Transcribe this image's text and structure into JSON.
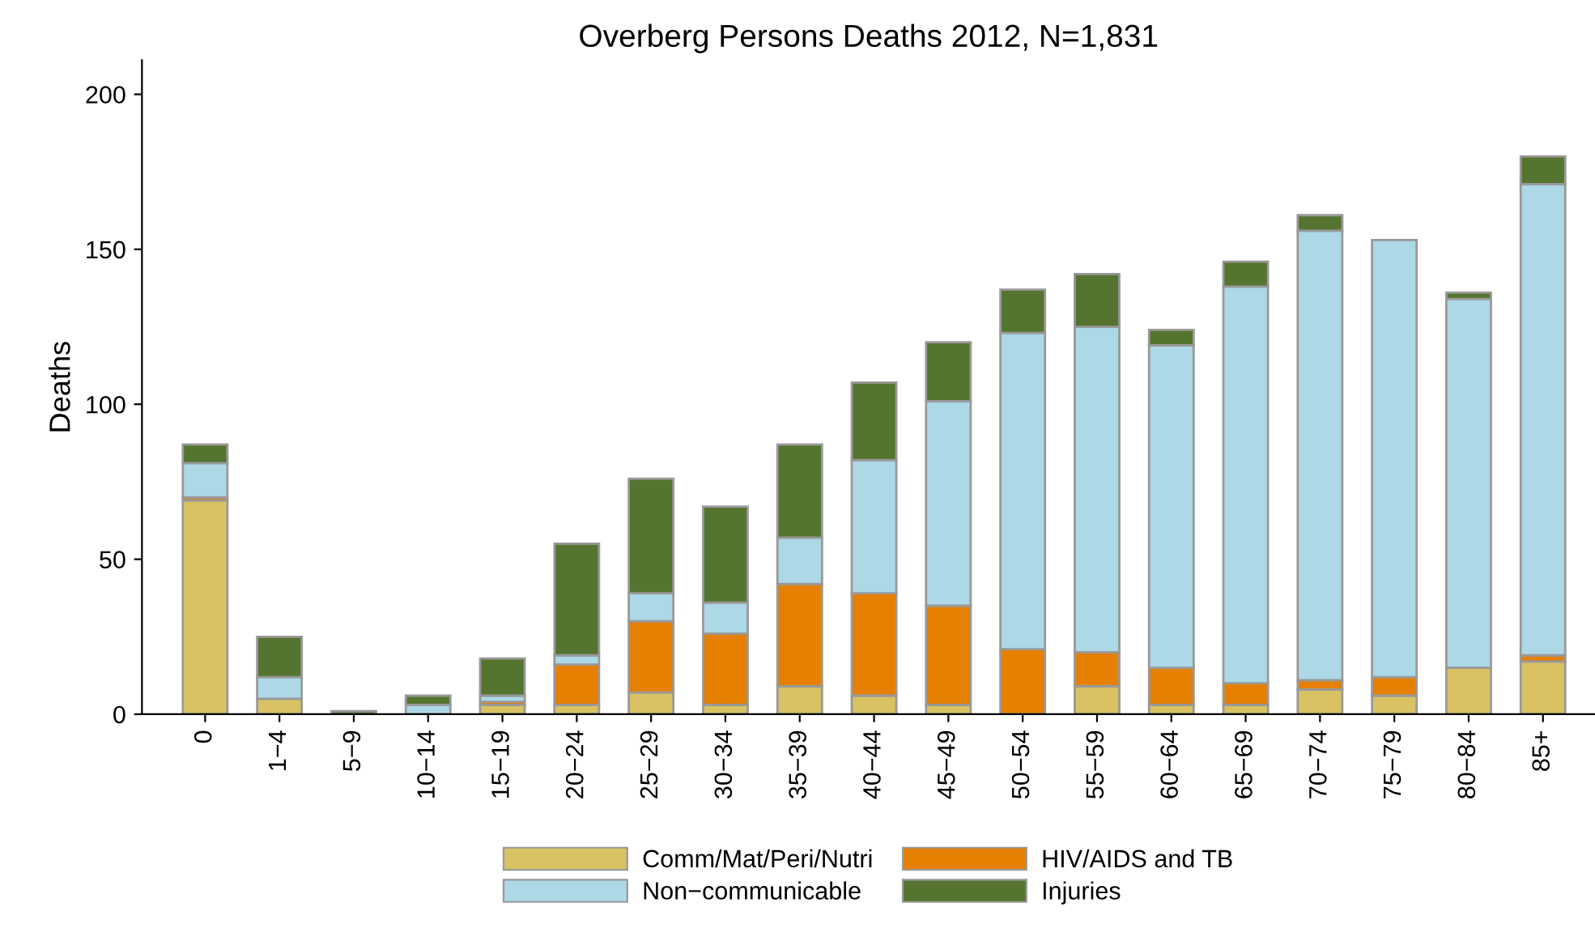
{
  "chart_data": {
    "type": "bar",
    "title": "Overberg Persons Deaths 2012, N=1,831",
    "ylabel": "Deaths",
    "categories": [
      "0",
      "1−4",
      "5−9",
      "10−14",
      "15−19",
      "20−24",
      "25−29",
      "30−34",
      "35−39",
      "40−44",
      "45−49",
      "50−54",
      "55−59",
      "60−64",
      "65−69",
      "70−74",
      "75−79",
      "80−84",
      "85+"
    ],
    "stacked": true,
    "series": [
      {
        "name": "Comm/Mat/Peri/Nutri",
        "color": "#d8c263",
        "values": [
          69,
          5,
          0,
          0,
          3,
          3,
          7,
          3,
          9,
          6,
          3,
          null,
          9,
          3,
          3,
          8,
          6,
          15,
          17
        ]
      },
      {
        "name": "HIV/AIDS and TB",
        "color": "#e58000",
        "values": [
          1,
          0,
          0,
          0,
          1,
          13,
          23,
          23,
          33,
          33,
          32,
          21,
          11,
          12,
          7,
          3,
          6,
          0,
          2
        ]
      },
      {
        "name": "Non−communicable",
        "color": "#add8e6",
        "values": [
          11,
          7,
          null,
          3,
          2,
          3,
          9,
          10,
          15,
          43,
          66,
          102,
          105,
          104,
          128,
          145,
          141,
          119,
          152
        ]
      },
      {
        "name": "Injuries",
        "color": "#557430",
        "values": [
          6,
          13,
          1,
          3,
          12,
          36,
          37,
          31,
          30,
          25,
          19,
          14,
          17,
          5,
          8,
          5,
          0,
          2,
          9
        ]
      }
    ],
    "ylim": [
      0,
      211
    ],
    "yticks": [
      0,
      50,
      100,
      150,
      200
    ],
    "grid": false,
    "legend": "bottom"
  }
}
